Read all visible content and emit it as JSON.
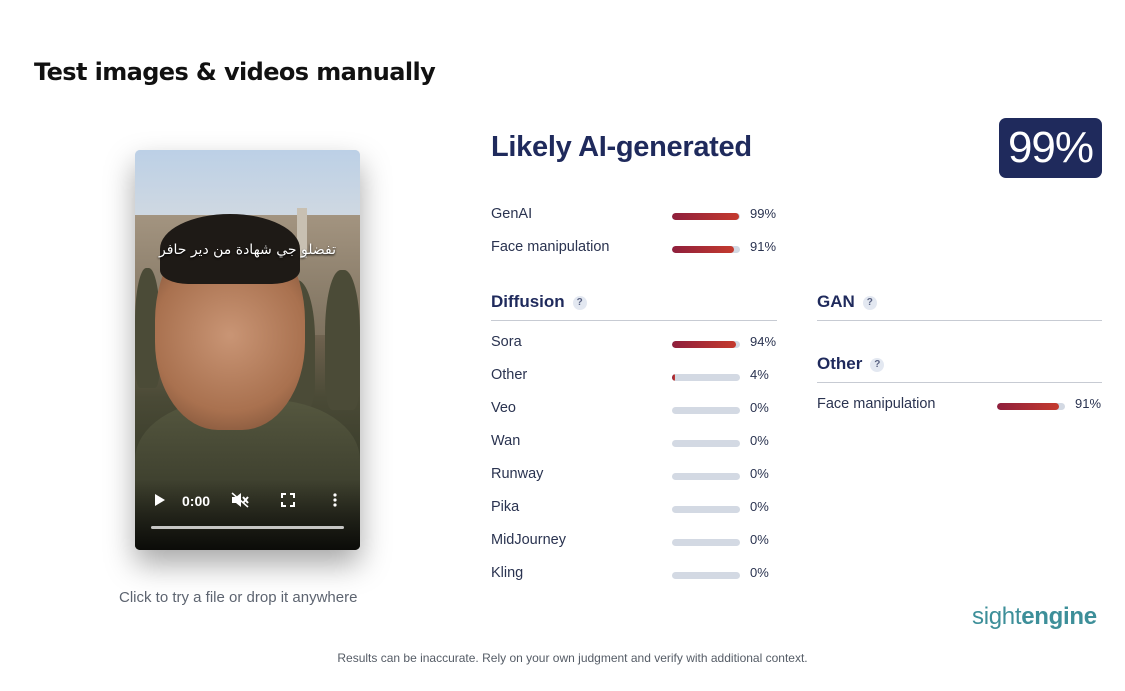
{
  "page": {
    "title": "Test images & videos manually"
  },
  "video": {
    "caption": "تفضلو جي شهادة من دير حافر",
    "time": "0:00",
    "drop_hint": "Click to try a file or drop it anywhere"
  },
  "result": {
    "verdict": "Likely AI-generated",
    "score": "99%",
    "summary": [
      {
        "label": "GenAI",
        "value": 99,
        "display": "99%"
      },
      {
        "label": "Face manipulation",
        "value": 91,
        "display": "91%"
      }
    ]
  },
  "diffusion": {
    "heading": "Diffusion",
    "help": "?",
    "items": [
      {
        "label": "Sora",
        "value": 94,
        "display": "94%"
      },
      {
        "label": "Other",
        "value": 4,
        "display": "4%"
      },
      {
        "label": "Veo",
        "value": 0,
        "display": "0%"
      },
      {
        "label": "Wan",
        "value": 0,
        "display": "0%"
      },
      {
        "label": "Runway",
        "value": 0,
        "display": "0%"
      },
      {
        "label": "Pika",
        "value": 0,
        "display": "0%"
      },
      {
        "label": "MidJourney",
        "value": 0,
        "display": "0%"
      },
      {
        "label": "Kling",
        "value": 0,
        "display": "0%"
      }
    ]
  },
  "gan": {
    "heading": "GAN",
    "help": "?"
  },
  "other": {
    "heading": "Other",
    "help": "?",
    "items": [
      {
        "label": "Face manipulation",
        "value": 91,
        "display": "91%"
      }
    ]
  },
  "brand": {
    "part1": "sight",
    "part2": "engine"
  },
  "disclaimer": "Results can be inaccurate. Rely on your own judgment and verify with additional context.",
  "colors": {
    "accent": "#1f2a5c",
    "bar_start": "#8f1f3c",
    "bar_end": "#c43a2e",
    "track": "#d3d9e3",
    "brand": "#3d8f99"
  }
}
